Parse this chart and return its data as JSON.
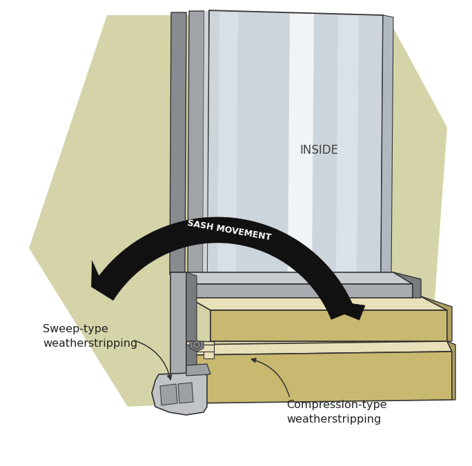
{
  "bg_color": "#ffffff",
  "hex_color": "#d4d4a8",
  "glass_light": "#cdd5dc",
  "glass_mid": "#bcc5ce",
  "glass_white": "#eef2f5",
  "frame_light": "#c8ccce",
  "frame_mid": "#a8acb0",
  "frame_dark": "#787c80",
  "wood_cream": "#e8e0b8",
  "wood_tan": "#c8b870",
  "wood_dark_tan": "#b0a060",
  "sweep_light": "#c0c4c6",
  "sweep_mid": "#9ca0a2",
  "sweep_dark": "#707478",
  "arrow_black": "#111111",
  "line_dark": "#333333",
  "text_inside": "INSIDE",
  "text_sash": "SASH MOVEMENT",
  "text_sweep": "Sweep-type\nweatherstripping",
  "text_compress": "Compression-type\nweatherstripping",
  "label_fontsize": 11.5
}
